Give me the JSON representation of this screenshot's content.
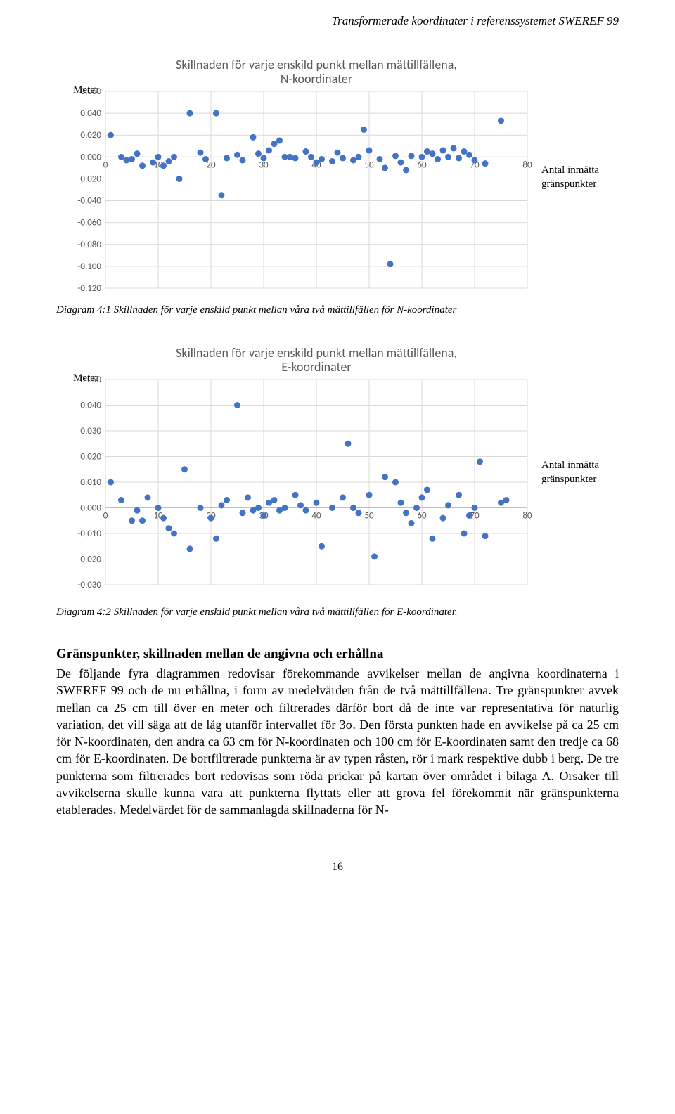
{
  "header": "Transformerade koordinater i referenssystemet SWEREF 99",
  "chart1": {
    "type": "scatter",
    "y_axis_label": "Meter",
    "title": "Skillnaden för varje enskild punkt mellan mättillfällena,\nN-koordinater",
    "legend": "Antal inmätta\ngränspunkter",
    "caption": "Diagram 4:1 Skillnaden för varje enskild punkt mellan våra två mättillfällen för N-koordinater",
    "xlim": [
      0,
      80
    ],
    "x_ticks": [
      0,
      10,
      20,
      30,
      40,
      50,
      60,
      70,
      80
    ],
    "ylim": [
      -0.12,
      0.06
    ],
    "y_ticks": [
      0.06,
      0.04,
      0.02,
      0.0,
      -0.02,
      -0.04,
      -0.06,
      -0.08,
      -0.1,
      -0.12
    ],
    "marker_color": "#4472c4",
    "bg_color": "#ffffff",
    "grid_color": "#d9d9d9",
    "points": [
      {
        "x": 1,
        "y": 0.02
      },
      {
        "x": 3,
        "y": 0.0
      },
      {
        "x": 4,
        "y": -0.003
      },
      {
        "x": 5,
        "y": -0.002
      },
      {
        "x": 6,
        "y": 0.003
      },
      {
        "x": 7,
        "y": -0.008
      },
      {
        "x": 9,
        "y": -0.005
      },
      {
        "x": 10,
        "y": 0.0
      },
      {
        "x": 11,
        "y": -0.008
      },
      {
        "x": 12,
        "y": -0.004
      },
      {
        "x": 13,
        "y": 0.0
      },
      {
        "x": 14,
        "y": -0.02
      },
      {
        "x": 16,
        "y": 0.04
      },
      {
        "x": 18,
        "y": 0.004
      },
      {
        "x": 19,
        "y": -0.002
      },
      {
        "x": 21,
        "y": 0.04
      },
      {
        "x": 22,
        "y": -0.035
      },
      {
        "x": 23,
        "y": -0.001
      },
      {
        "x": 25,
        "y": 0.002
      },
      {
        "x": 26,
        "y": -0.003
      },
      {
        "x": 28,
        "y": 0.018
      },
      {
        "x": 29,
        "y": 0.003
      },
      {
        "x": 30,
        "y": -0.001
      },
      {
        "x": 31,
        "y": 0.006
      },
      {
        "x": 32,
        "y": 0.012
      },
      {
        "x": 33,
        "y": 0.015
      },
      {
        "x": 34,
        "y": 0.0
      },
      {
        "x": 35,
        "y": 0.0
      },
      {
        "x": 36,
        "y": -0.001
      },
      {
        "x": 38,
        "y": 0.005
      },
      {
        "x": 39,
        "y": 0.0
      },
      {
        "x": 40,
        "y": -0.005
      },
      {
        "x": 41,
        "y": -0.002
      },
      {
        "x": 43,
        "y": -0.004
      },
      {
        "x": 44,
        "y": 0.004
      },
      {
        "x": 45,
        "y": -0.001
      },
      {
        "x": 47,
        "y": -0.003
      },
      {
        "x": 48,
        "y": 0.0
      },
      {
        "x": 49,
        "y": 0.025
      },
      {
        "x": 50,
        "y": 0.006
      },
      {
        "x": 52,
        "y": -0.002
      },
      {
        "x": 53,
        "y": -0.01
      },
      {
        "x": 54,
        "y": -0.098
      },
      {
        "x": 55,
        "y": 0.001
      },
      {
        "x": 56,
        "y": -0.005
      },
      {
        "x": 57,
        "y": -0.012
      },
      {
        "x": 58,
        "y": 0.001
      },
      {
        "x": 60,
        "y": 0.0
      },
      {
        "x": 61,
        "y": 0.005
      },
      {
        "x": 62,
        "y": 0.003
      },
      {
        "x": 63,
        "y": -0.002
      },
      {
        "x": 64,
        "y": 0.006
      },
      {
        "x": 65,
        "y": 0.0
      },
      {
        "x": 66,
        "y": 0.008
      },
      {
        "x": 67,
        "y": -0.001
      },
      {
        "x": 68,
        "y": 0.005
      },
      {
        "x": 69,
        "y": 0.002
      },
      {
        "x": 70,
        "y": -0.003
      },
      {
        "x": 72,
        "y": -0.006
      },
      {
        "x": 75,
        "y": 0.033
      }
    ]
  },
  "chart2": {
    "type": "scatter",
    "y_axis_label": "Meter",
    "title": "Skillnaden för varje enskild punkt mellan mättillfällena,\nE-koordinater",
    "legend": "Antal inmätta\ngränspunkter",
    "caption": "Diagram 4:2 Skillnaden för varje enskild punkt mellan våra två mättillfällen för E-koordinater.",
    "xlim": [
      0,
      80
    ],
    "x_ticks": [
      0,
      10,
      20,
      30,
      40,
      50,
      60,
      70,
      80
    ],
    "ylim": [
      -0.03,
      0.05
    ],
    "y_ticks": [
      0.05,
      0.04,
      0.03,
      0.02,
      0.01,
      0.0,
      -0.01,
      -0.02,
      -0.03
    ],
    "marker_color": "#4472c4",
    "bg_color": "#ffffff",
    "grid_color": "#d9d9d9",
    "points": [
      {
        "x": 1,
        "y": 0.01
      },
      {
        "x": 3,
        "y": 0.003
      },
      {
        "x": 5,
        "y": -0.005
      },
      {
        "x": 6,
        "y": -0.001
      },
      {
        "x": 7,
        "y": -0.005
      },
      {
        "x": 8,
        "y": 0.004
      },
      {
        "x": 10,
        "y": 0.0
      },
      {
        "x": 11,
        "y": -0.004
      },
      {
        "x": 12,
        "y": -0.008
      },
      {
        "x": 13,
        "y": -0.01
      },
      {
        "x": 15,
        "y": 0.015
      },
      {
        "x": 16,
        "y": -0.016
      },
      {
        "x": 18,
        "y": 0.0
      },
      {
        "x": 20,
        "y": -0.004
      },
      {
        "x": 21,
        "y": -0.012
      },
      {
        "x": 22,
        "y": 0.001
      },
      {
        "x": 23,
        "y": 0.003
      },
      {
        "x": 25,
        "y": 0.04
      },
      {
        "x": 26,
        "y": -0.002
      },
      {
        "x": 27,
        "y": 0.004
      },
      {
        "x": 28,
        "y": -0.001
      },
      {
        "x": 29,
        "y": 0.0
      },
      {
        "x": 30,
        "y": -0.003
      },
      {
        "x": 31,
        "y": 0.002
      },
      {
        "x": 32,
        "y": 0.003
      },
      {
        "x": 33,
        "y": -0.001
      },
      {
        "x": 34,
        "y": 0.0
      },
      {
        "x": 36,
        "y": 0.005
      },
      {
        "x": 37,
        "y": 0.001
      },
      {
        "x": 38,
        "y": -0.001
      },
      {
        "x": 40,
        "y": 0.002
      },
      {
        "x": 41,
        "y": -0.015
      },
      {
        "x": 43,
        "y": 0.0
      },
      {
        "x": 45,
        "y": 0.004
      },
      {
        "x": 46,
        "y": 0.025
      },
      {
        "x": 47,
        "y": 0.0
      },
      {
        "x": 48,
        "y": -0.002
      },
      {
        "x": 50,
        "y": 0.005
      },
      {
        "x": 51,
        "y": -0.019
      },
      {
        "x": 53,
        "y": 0.012
      },
      {
        "x": 55,
        "y": 0.01
      },
      {
        "x": 56,
        "y": 0.002
      },
      {
        "x": 57,
        "y": -0.002
      },
      {
        "x": 58,
        "y": -0.006
      },
      {
        "x": 59,
        "y": 0.0
      },
      {
        "x": 60,
        "y": 0.004
      },
      {
        "x": 61,
        "y": 0.007
      },
      {
        "x": 62,
        "y": -0.012
      },
      {
        "x": 64,
        "y": -0.004
      },
      {
        "x": 65,
        "y": 0.001
      },
      {
        "x": 67,
        "y": 0.005
      },
      {
        "x": 68,
        "y": -0.01
      },
      {
        "x": 69,
        "y": -0.003
      },
      {
        "x": 70,
        "y": 0.0
      },
      {
        "x": 71,
        "y": 0.018
      },
      {
        "x": 72,
        "y": -0.011
      },
      {
        "x": 75,
        "y": 0.002
      },
      {
        "x": 76,
        "y": 0.003
      }
    ]
  },
  "section": {
    "heading": "Gränspunkter, skillnaden mellan de angivna och erhållna",
    "body": "De följande fyra diagrammen redovisar förekommande avvikelser mellan de angivna koordinaterna i SWEREF 99 och de nu erhållna, i form av medelvärden från de två mättillfällena. Tre gränspunkter avvek mellan ca 25 cm till över en meter och filtrerades därför bort då de inte var representativa för naturlig variation, det vill säga att de låg utanför intervallet för 3σ. Den första punkten hade en avvikelse på ca 25 cm för N-koordinaten, den andra ca 63 cm för N-koordinaten och 100 cm för E-koordinaten samt den tredje ca 68 cm för E-koordinaten. De bortfiltrerade punkterna är av typen råsten, rör i mark respektive dubb i berg. De tre punkterna som filtrerades bort redovisas som röda prickar på kartan över området i bilaga A. Orsaker till avvikelserna skulle kunna vara att punkterna flyttats eller att grova fel förekommit när gränspunkterna etablerades. Medelvärdet för de sammanlagda skillnaderna för N-"
  },
  "page_number": "16"
}
